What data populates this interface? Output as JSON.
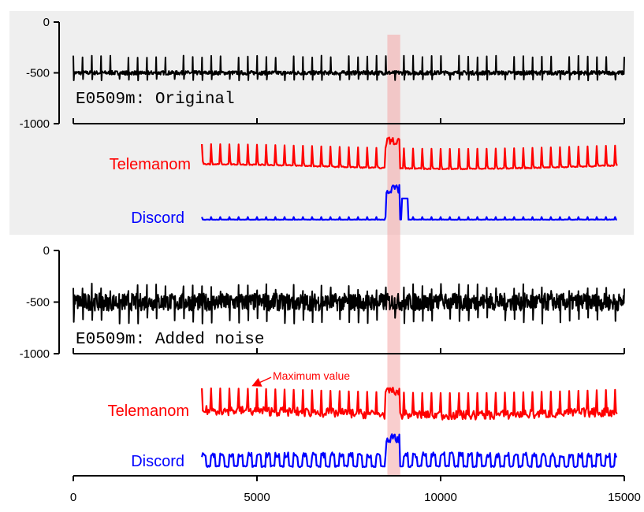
{
  "chart_data": [
    {
      "type": "line",
      "panel": "top",
      "title": "E0509m: Original",
      "ylim": [
        -1000,
        0
      ],
      "yticks": [
        0,
        -500,
        -1000
      ],
      "yticklabels": [
        "0",
        "-500",
        "-1000"
      ],
      "xlim": [
        0,
        15000
      ],
      "background": "light-gray",
      "series": [
        {
          "name": "Telemanom",
          "color": "#ff0000",
          "x_start": 3500,
          "x_end": 14800
        },
        {
          "name": "Discord",
          "color": "#0000ff",
          "x_start": 3500,
          "x_end": 14800
        }
      ],
      "signal": {
        "color": "#000000",
        "baseline": -500,
        "peak": -330,
        "trough": -560,
        "anomaly_min": -840,
        "noise": "low"
      }
    },
    {
      "type": "line",
      "panel": "bottom",
      "title": "E0509m: Added noise",
      "ylim": [
        -1000,
        0
      ],
      "yticks": [
        0,
        -500,
        -1000
      ],
      "yticklabels": [
        "0",
        "-500",
        "-1000"
      ],
      "xlim": [
        0,
        15000
      ],
      "xticks": [
        0,
        5000,
        10000,
        15000
      ],
      "xticklabels": [
        "0",
        "5000",
        "10000",
        "15000"
      ],
      "annotation": "Maximum value",
      "series": [
        {
          "name": "Telemanom",
          "color": "#ff0000",
          "x_start": 3500,
          "x_end": 14800
        },
        {
          "name": "Discord",
          "color": "#0000ff",
          "x_start": 3500,
          "x_end": 14800
        }
      ],
      "signal": {
        "color": "#000000",
        "baseline": -500,
        "peak": -320,
        "trough": -650,
        "anomaly_min": -860,
        "noise": "high"
      }
    }
  ],
  "highlight": {
    "x_range": [
      8550,
      8900
    ],
    "color": "#f4a6a6"
  },
  "colors": {
    "panel_bg": "#efefef",
    "signal": "#000000",
    "telemanom": "#ff0000",
    "discord": "#0000ff"
  }
}
